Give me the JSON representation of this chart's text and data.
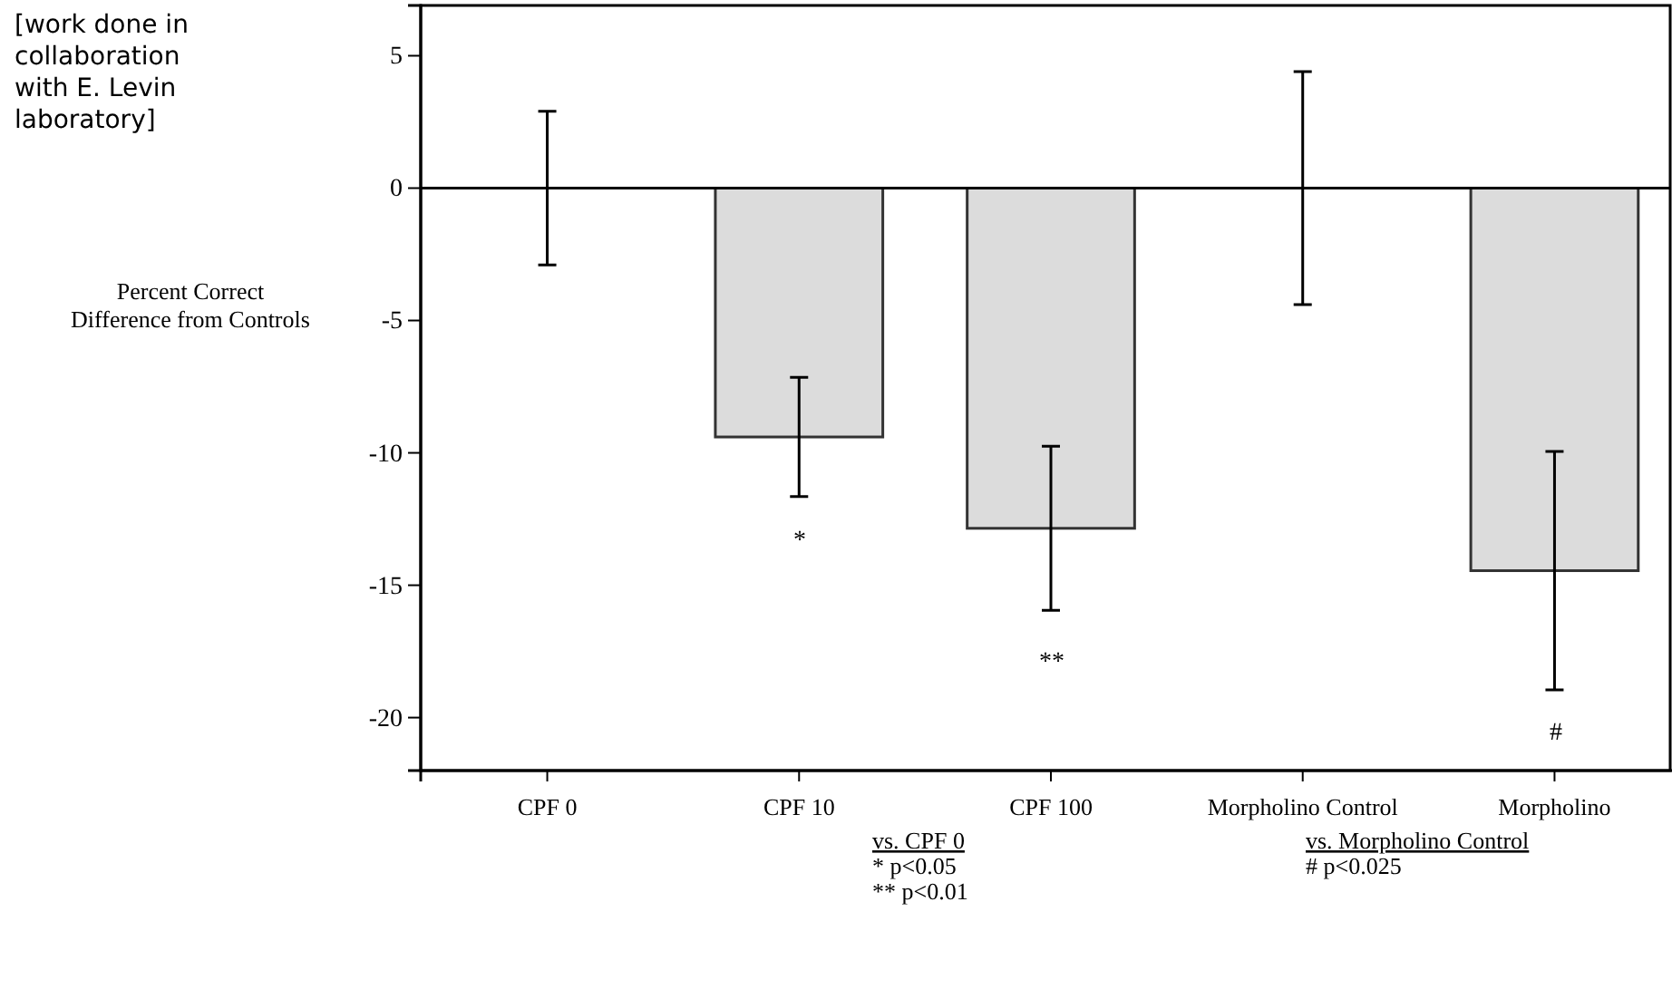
{
  "chart_data": {
    "type": "bar",
    "ylabel": "Percent Correct\nDifference from Controls",
    "categories": [
      "CPF 0",
      "CPF 10",
      "CPF 100",
      "Morpholino Control",
      "Morpholino"
    ],
    "values": [
      0,
      -9.4,
      -12.85,
      0,
      -14.45
    ],
    "errors": [
      2.9,
      2.25,
      3.1,
      4.4,
      4.5
    ],
    "color": "#dcdcdc",
    "ylim": [
      -22,
      6.9
    ],
    "yticks": [
      -20,
      -15,
      -10,
      -5,
      0,
      5
    ],
    "ref_lines": [
      {
        "axis": "y",
        "value": 0
      }
    ],
    "annotations": [
      "*",
      "**",
      "#",
      "[work done in collaboration with E. Levin laboratory]",
      "vs. CPF 0",
      "*   p<0.05",
      "** p<0.01",
      "vs. Morpholino Control",
      "# p<0.025"
    ]
  }
}
